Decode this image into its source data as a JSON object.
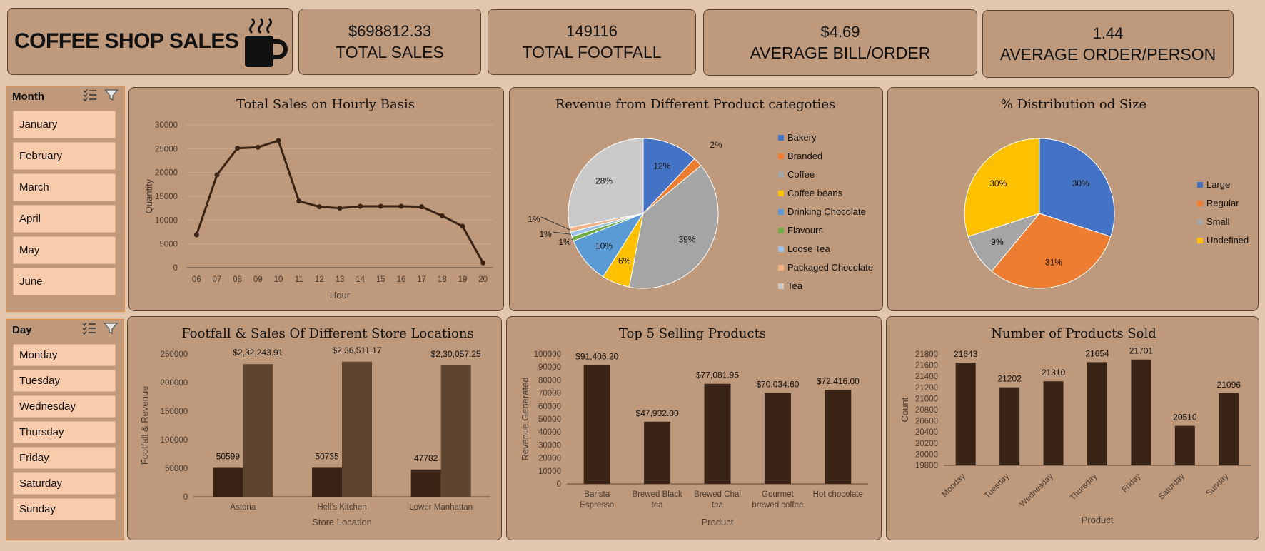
{
  "header": {
    "title": "COFFEE SHOP SALES",
    "kpis": [
      {
        "value": "$698812.33",
        "label": "TOTAL SALES"
      },
      {
        "value": "149116",
        "label": "TOTAL FOOTFALL"
      },
      {
        "value": "$4.69",
        "label": "AVERAGE BILL/ORDER"
      },
      {
        "value": "1.44",
        "label": "AVERAGE ORDER/PERSON"
      }
    ]
  },
  "slicers": {
    "month": {
      "label": "Month",
      "items": [
        "January",
        "February",
        "March",
        "April",
        "May",
        "June"
      ]
    },
    "day": {
      "label": "Day",
      "items": [
        "Monday",
        "Tuesday",
        "Wednesday",
        "Thursday",
        "Friday",
        "Saturday",
        "Sunday"
      ]
    }
  },
  "colors": {
    "background": "#e3c7ac",
    "card": "#be997c",
    "dark_brown": "#3a2415",
    "medium_brown": "#5e4530",
    "slicer_item": "#f8cbad"
  },
  "chart_data": [
    {
      "type": "line",
      "title": "Total Sales on Hourly Basis",
      "xlabel": "Hour",
      "ylabel": "Quantity",
      "ylim": [
        0,
        30000
      ],
      "yticks": [
        0,
        5000,
        10000,
        15000,
        20000,
        25000,
        30000
      ],
      "grid": true,
      "categories": [
        "06",
        "07",
        "08",
        "09",
        "10",
        "11",
        "12",
        "13",
        "14",
        "15",
        "16",
        "17",
        "18",
        "19",
        "20"
      ],
      "values": [
        6900,
        19500,
        25100,
        25300,
        26700,
        14000,
        12800,
        12500,
        12900,
        12900,
        12900,
        12800,
        10900,
        8700,
        1000
      ]
    },
    {
      "type": "pie",
      "title": "Revenue from Different Product categoties",
      "legend": "right",
      "slices": [
        {
          "label": "Bakery",
          "value": 12,
          "text": "12%",
          "color": "#4472c4"
        },
        {
          "label": "Branded",
          "value": 2,
          "text": "2%",
          "color": "#ed7d31"
        },
        {
          "label": "Coffee",
          "value": 39,
          "text": "39%",
          "color": "#a5a5a5"
        },
        {
          "label": "Coffee beans",
          "value": 6,
          "text": "6%",
          "color": "#ffc000"
        },
        {
          "label": "Drinking Chocolate",
          "value": 10,
          "text": "10%",
          "color": "#5b9bd5"
        },
        {
          "label": "Flavours",
          "value": 1,
          "text": "1%",
          "color": "#70ad47"
        },
        {
          "label": "Loose Tea",
          "value": 1,
          "text": "1%",
          "color": "#9dc3e6"
        },
        {
          "label": "Packaged Chocolate",
          "value": 1,
          "text": "1%",
          "color": "#f4b183"
        },
        {
          "label": "Tea",
          "value": 28,
          "text": "28%",
          "color": "#c9c9c9"
        }
      ]
    },
    {
      "type": "pie",
      "title": "% Distribution od Size",
      "legend": "right",
      "slices": [
        {
          "label": "Large",
          "value": 30,
          "text": "30%",
          "color": "#4472c4"
        },
        {
          "label": "Regular",
          "value": 31,
          "text": "31%",
          "color": "#ed7d31"
        },
        {
          "label": "Small",
          "value": 9,
          "text": "9%",
          "color": "#a5a5a5"
        },
        {
          "label": "Undefined",
          "value": 30,
          "text": "30%",
          "color": "#ffc000"
        }
      ]
    },
    {
      "type": "bar",
      "title": "Footfall & Sales Of Different Store Locations",
      "xlabel": "Store Location",
      "ylabel": "Footfall & Revenue",
      "ylim": [
        0,
        250000
      ],
      "yticks": [
        0,
        50000,
        100000,
        150000,
        200000,
        250000
      ],
      "categories": [
        "Astoria",
        "Hell's Kitchen",
        "Lower Manhattan"
      ],
      "series": [
        {
          "values": [
            50599,
            50735,
            47782
          ],
          "labels": [
            "50599",
            "50735",
            "47782"
          ],
          "color": "#3a2415"
        },
        {
          "values": [
            232243.91,
            236511.17,
            230057.25
          ],
          "labels": [
            "$2,32,243.91",
            "$2,36,511.17",
            "$2,30,057.25"
          ],
          "color": "#5e4530"
        }
      ]
    },
    {
      "type": "bar",
      "title": "Top 5 Selling Products",
      "xlabel": "Product",
      "ylabel": "Revenue Generated",
      "ylim": [
        0,
        100000
      ],
      "yticks": [
        0,
        10000,
        20000,
        30000,
        40000,
        50000,
        60000,
        70000,
        80000,
        90000,
        100000
      ],
      "categories": [
        [
          "Barista",
          "Espresso"
        ],
        [
          "Brewed Black",
          "tea"
        ],
        [
          "Brewed Chai",
          "tea"
        ],
        [
          "Gourmet",
          "brewed coffee"
        ],
        [
          "Hot chocolate"
        ]
      ],
      "values": [
        91406.2,
        47932.0,
        77081.95,
        70034.6,
        72416.0
      ],
      "labels": [
        "$91,406.20",
        "$47,932.00",
        "$77,081.95",
        "$70,034.60",
        "$72,416.00"
      ]
    },
    {
      "type": "bar",
      "title": "Number of Products Sold",
      "xlabel": "Product",
      "ylabel": "Count",
      "ylim": [
        19800,
        21800
      ],
      "yticks": [
        19800,
        20000,
        20200,
        20400,
        20600,
        20800,
        21000,
        21200,
        21400,
        21600,
        21800
      ],
      "categories": [
        "Monday",
        "Tuesday",
        "Wednesday",
        "Thursday",
        "Friday",
        "Saturday",
        "Sunday"
      ],
      "values": [
        21643,
        21202,
        21310,
        21654,
        21701,
        20510,
        21096
      ],
      "labels": [
        "21643",
        "21202",
        "21310",
        "21654",
        "21701",
        "20510",
        "21096"
      ]
    }
  ]
}
